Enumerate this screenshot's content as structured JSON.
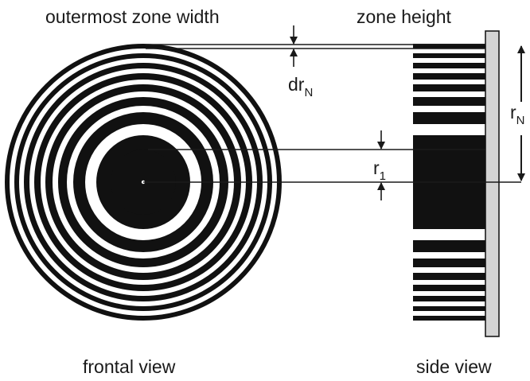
{
  "labels": {
    "outermost_zone_width": "outermost zone width",
    "zone_height": "zone height",
    "frontal_view": "frontal view",
    "side_view": "side view"
  },
  "symbols": {
    "dr_main": "dr",
    "dr_sub": "N",
    "r1_main": "r",
    "r1_sub": "1",
    "rN_main": "r",
    "rN_sub": "N"
  },
  "colors": {
    "zone": "#111111",
    "substrate": "#d4d4d4",
    "line": "#1a1a1a"
  }
}
